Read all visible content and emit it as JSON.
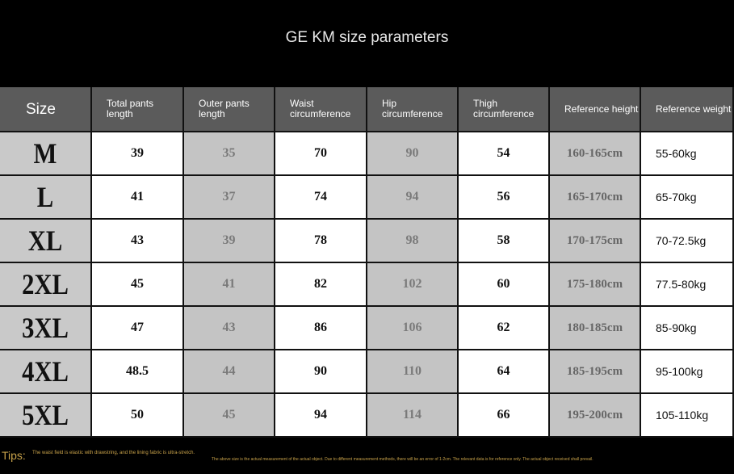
{
  "title": "GE KM size parameters",
  "headers": [
    "Size",
    "Total pants length",
    "Outer pants length",
    "Waist circumference",
    "Hip circumference",
    "Thigh circumference",
    "Reference height",
    "Reference weight"
  ],
  "rows": [
    {
      "size": "M",
      "total": "39",
      "outer": "35",
      "waist": "70",
      "hip": "90",
      "thigh": "54",
      "height": "160-165cm",
      "weight": "55-60kg"
    },
    {
      "size": "L",
      "total": "41",
      "outer": "37",
      "waist": "74",
      "hip": "94",
      "thigh": "56",
      "height": "165-170cm",
      "weight": "65-70kg"
    },
    {
      "size": "XL",
      "total": "43",
      "outer": "39",
      "waist": "78",
      "hip": "98",
      "thigh": "58",
      "height": "170-175cm",
      "weight": "70-72.5kg"
    },
    {
      "size": "2XL",
      "total": "45",
      "outer": "41",
      "waist": "82",
      "hip": "102",
      "thigh": "60",
      "height": "175-180cm",
      "weight": "77.5-80kg"
    },
    {
      "size": "3XL",
      "total": "47",
      "outer": "43",
      "waist": "86",
      "hip": "106",
      "thigh": "62",
      "height": "180-185cm",
      "weight": "85-90kg"
    },
    {
      "size": "4XL",
      "total": "48.5",
      "outer": "44",
      "waist": "90",
      "hip": "110",
      "thigh": "64",
      "height": "185-195cm",
      "weight": "95-100kg"
    },
    {
      "size": "5XL",
      "total": "50",
      "outer": "45",
      "waist": "94",
      "hip": "114",
      "thigh": "66",
      "height": "195-200cm",
      "weight": "105-110kg"
    }
  ],
  "tips_label": "Tips:",
  "tip_1": "The waist field is elastic with drawstring, and the lining fabric is ultra-stretch.",
  "tip_2": "The above size is the actual measurement of the actual object. Due to different measurement methods, there will be an error of 1-2cm. The relevant data is for reference only. The actual object received shall prevail."
}
